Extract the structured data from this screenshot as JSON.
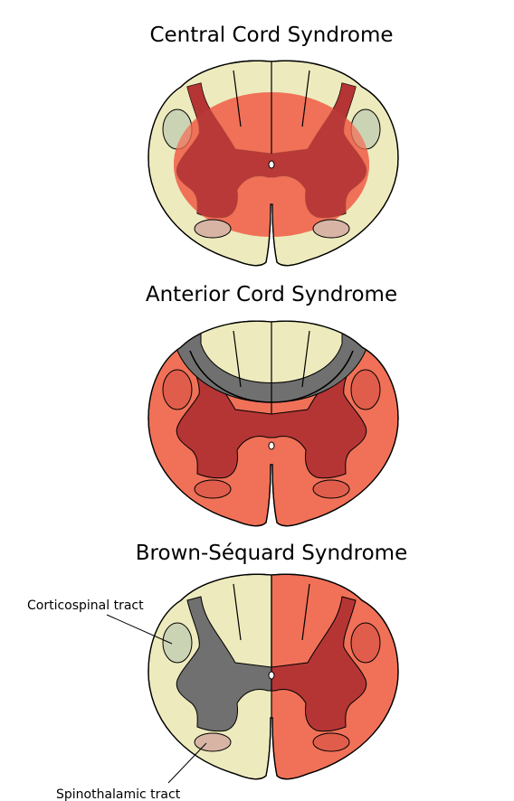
{
  "panels": [
    {
      "title": "Central Cord Syndrome",
      "lesion": "central"
    },
    {
      "title": "Anterior Cord Syndrome",
      "lesion": "anterior"
    },
    {
      "title": "Brown-Séquard Syndrome",
      "lesion": "right-hemisection"
    }
  ],
  "labels": {
    "corticospinal": "Corticospinal tract",
    "spinothalamic": "Spinothalamic tract"
  },
  "colors": {
    "white_matter": "#EDEBBD",
    "grey_matter": "#707070",
    "lesion": "#F07158",
    "lesion_grey": "#B53535",
    "corticospinal": "#CBD3B5",
    "spinothalamic": "#D8B4A4"
  }
}
